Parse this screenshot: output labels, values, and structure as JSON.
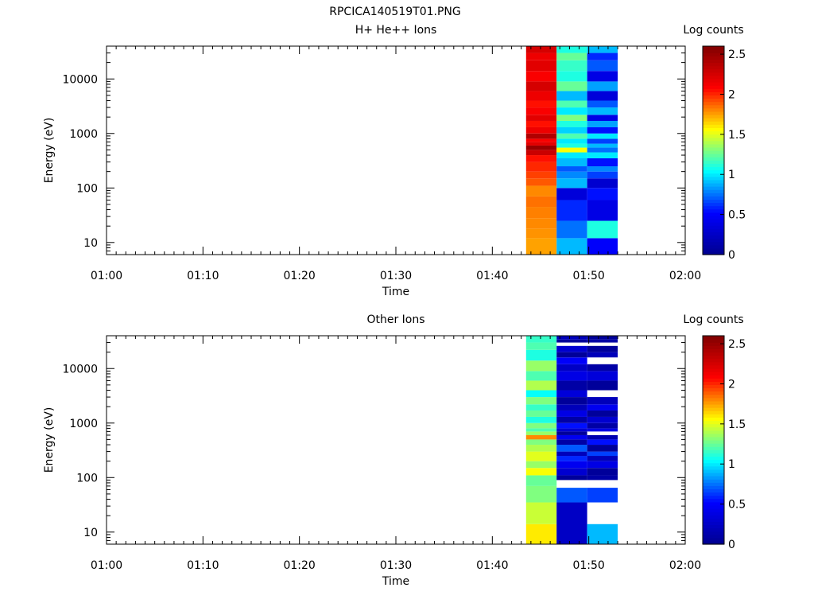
{
  "figure_title": "RPCICA140519T01.PNG",
  "chart_data": [
    {
      "type": "heatmap",
      "title": "H+ He++ Ions",
      "xlabel": "Time",
      "ylabel": "Energy (eV)",
      "colorbar_label": "Log counts",
      "x_ticks": [
        "01:00",
        "01:10",
        "01:20",
        "01:30",
        "01:40",
        "01:50",
        "02:00"
      ],
      "x_range": [
        "01:00",
        "02:00"
      ],
      "y_scale": "log",
      "y_range": [
        6,
        40000
      ],
      "y_ticks": [
        10,
        100,
        1000,
        10000
      ],
      "y_tick_labels": [
        "10",
        "100",
        "1000",
        "10000"
      ],
      "colorbar_range": [
        0,
        2.6
      ],
      "colorbar_ticks": [
        "0",
        "0.5",
        "1",
        "1.5",
        "2",
        "2.5"
      ],
      "colormap": [
        "#00008f",
        "#0000ff",
        "#00ffff",
        "#ffff00",
        "#ff0000",
        "#800000"
      ],
      "columns": [
        {
          "t_start": "01:43:30",
          "t_end": "01:46:40",
          "energy_edges": [
            6,
            12,
            18,
            28,
            45,
            70,
            110,
            150,
            200,
            300,
            400,
            500,
            600,
            700,
            800,
            1000,
            1300,
            1700,
            2200,
            3000,
            4000,
            6000,
            9000,
            14000,
            22000,
            30000,
            40000
          ],
          "values": [
            1.75,
            1.78,
            1.8,
            1.82,
            1.85,
            1.8,
            1.9,
            1.95,
            2.0,
            2.05,
            2.3,
            2.5,
            2.2,
            2.1,
            2.4,
            2.15,
            2.05,
            2.2,
            2.1,
            2.05,
            2.15,
            2.25,
            2.1,
            2.2,
            2.15,
            2.25
          ]
        },
        {
          "t_start": "01:46:40",
          "t_end": "01:49:50",
          "energy_edges": [
            6,
            12,
            25,
            60,
            100,
            150,
            200,
            250,
            350,
            450,
            550,
            650,
            800,
            1000,
            1300,
            1700,
            2200,
            3000,
            4000,
            6000,
            9000,
            14000,
            22000,
            30000,
            40000
          ],
          "values": [
            0.9,
            0.75,
            0.6,
            0.35,
            0.9,
            0.8,
            0.7,
            0.9,
            1.0,
            1.55,
            1.1,
            1.0,
            1.2,
            0.95,
            1.1,
            1.3,
            1.0,
            1.2,
            0.9,
            1.25,
            1.1,
            1.15,
            1.25,
            1.1
          ]
        },
        {
          "t_start": "01:49:50",
          "t_end": "01:53:00",
          "energy_edges": [
            6,
            12,
            25,
            60,
            100,
            150,
            200,
            250,
            350,
            450,
            550,
            650,
            800,
            1000,
            1300,
            1700,
            2200,
            3000,
            4000,
            6000,
            9000,
            14000,
            22000,
            30000,
            40000
          ],
          "values": [
            0.5,
            1.1,
            0.4,
            0.55,
            0.3,
            0.65,
            0.8,
            0.55,
            1.0,
            0.75,
            0.9,
            0.65,
            1.0,
            0.55,
            0.85,
            0.4,
            0.9,
            0.7,
            0.35,
            0.85,
            0.4,
            0.7,
            0.6,
            0.9
          ]
        }
      ]
    },
    {
      "type": "heatmap",
      "title": "Other Ions",
      "xlabel": "Time",
      "ylabel": "Energy (eV)",
      "colorbar_label": "Log counts",
      "x_ticks": [
        "01:00",
        "01:10",
        "01:20",
        "01:30",
        "01:40",
        "01:50",
        "02:00"
      ],
      "x_range": [
        "01:00",
        "02:00"
      ],
      "y_scale": "log",
      "y_range": [
        6,
        40000
      ],
      "y_ticks": [
        10,
        100,
        1000,
        10000
      ],
      "y_tick_labels": [
        "10",
        "100",
        "1000",
        "10000"
      ],
      "colorbar_range": [
        0,
        2.6
      ],
      "colorbar_ticks": [
        "0",
        "0.5",
        "1",
        "1.5",
        "2",
        "2.5"
      ],
      "colormap": [
        "#00008f",
        "#0000ff",
        "#00ffff",
        "#ffff00",
        "#ff0000",
        "#800000"
      ],
      "columns": [
        {
          "t_start": "01:43:30",
          "t_end": "01:46:40",
          "energy_edges": [
            6,
            14,
            35,
            70,
            110,
            150,
            200,
            300,
            400,
            500,
            600,
            700,
            800,
            1000,
            1300,
            1700,
            2200,
            3000,
            4000,
            6000,
            9000,
            14000,
            22000,
            30000,
            40000
          ],
          "values": [
            1.6,
            1.45,
            1.3,
            1.25,
            1.55,
            1.35,
            1.5,
            1.4,
            1.3,
            1.8,
            1.35,
            1.2,
            1.3,
            1.1,
            1.25,
            1.15,
            1.3,
            1.05,
            1.4,
            1.2,
            1.35,
            1.1,
            1.2,
            1.15
          ]
        },
        {
          "t_start": "01:46:40",
          "t_end": "01:49:50",
          "energy_edges": [
            6,
            35,
            65,
            90,
            110,
            150,
            200,
            250,
            300,
            400,
            500,
            600,
            700,
            800,
            1000,
            1300,
            1700,
            2200,
            3000,
            4000,
            6000,
            9000,
            12000,
            16000,
            20000,
            26000,
            30000,
            34000,
            40000
          ],
          "values": [
            0.25,
            0.7,
            null,
            0.05,
            0.3,
            0.45,
            0.6,
            0.2,
            0.7,
            0.1,
            0.45,
            0.05,
            0.3,
            0.55,
            0.1,
            0.4,
            0.2,
            0.05,
            0.35,
            0.1,
            0.4,
            0.25,
            0.5,
            0.05,
            0.3,
            null,
            0.05,
            0.2
          ]
        },
        {
          "t_start": "01:49:50",
          "t_end": "01:53:00",
          "energy_edges": [
            6,
            14,
            35,
            65,
            90,
            110,
            150,
            200,
            250,
            300,
            400,
            500,
            600,
            700,
            800,
            1000,
            1300,
            1700,
            2200,
            3000,
            4000,
            6000,
            9000,
            12000,
            16000,
            20000,
            26000,
            30000,
            34000,
            40000
          ],
          "values": [
            0.9,
            null,
            0.65,
            null,
            0.1,
            0.05,
            0.4,
            0.2,
            0.65,
            0.05,
            0.55,
            0.15,
            null,
            0.4,
            0.1,
            0.3,
            0.05,
            0.45,
            0.2,
            null,
            0.05,
            0.35,
            0.1,
            null,
            0.2,
            0.05,
            null,
            0.1,
            0.05
          ]
        }
      ]
    }
  ]
}
